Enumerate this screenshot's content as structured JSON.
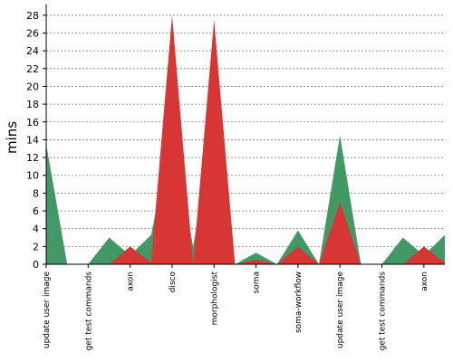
{
  "chart_data": {
    "type": "area",
    "ylabel": "mins",
    "xlabel": "",
    "title": "",
    "ylim": [
      0,
      29
    ],
    "yticks": [
      0,
      2,
      4,
      6,
      8,
      10,
      12,
      14,
      16,
      18,
      20,
      22,
      24,
      26,
      28
    ],
    "grid": true,
    "legend": "none",
    "categories": [
      "update user image",
      "get test commands",
      "axon",
      "disco",
      "morphologist",
      "soma",
      "soma-workflow",
      "update user image",
      "get test commands",
      "axon"
    ],
    "x": [
      0,
      0.5,
      1,
      1.5,
      2,
      2.5,
      3,
      3.5,
      4,
      4.5,
      5,
      5.5,
      6,
      6.5,
      7,
      7.5,
      8,
      8.5,
      9,
      9.5
    ],
    "series": [
      {
        "color": "#419966",
        "values": [
          13.5,
          0,
          0,
          3,
          1,
          3.3,
          15,
          2,
          15.5,
          0,
          1.3,
          0,
          3.8,
          0,
          14.5,
          0,
          0,
          3,
          1,
          3.3
        ]
      },
      {
        "color": "#d83535",
        "values": [
          0,
          0,
          0,
          0,
          2,
          0.2,
          28,
          0,
          27.5,
          0,
          0.5,
          0,
          2,
          0,
          7,
          0,
          0,
          0,
          2,
          0.2
        ]
      }
    ]
  }
}
